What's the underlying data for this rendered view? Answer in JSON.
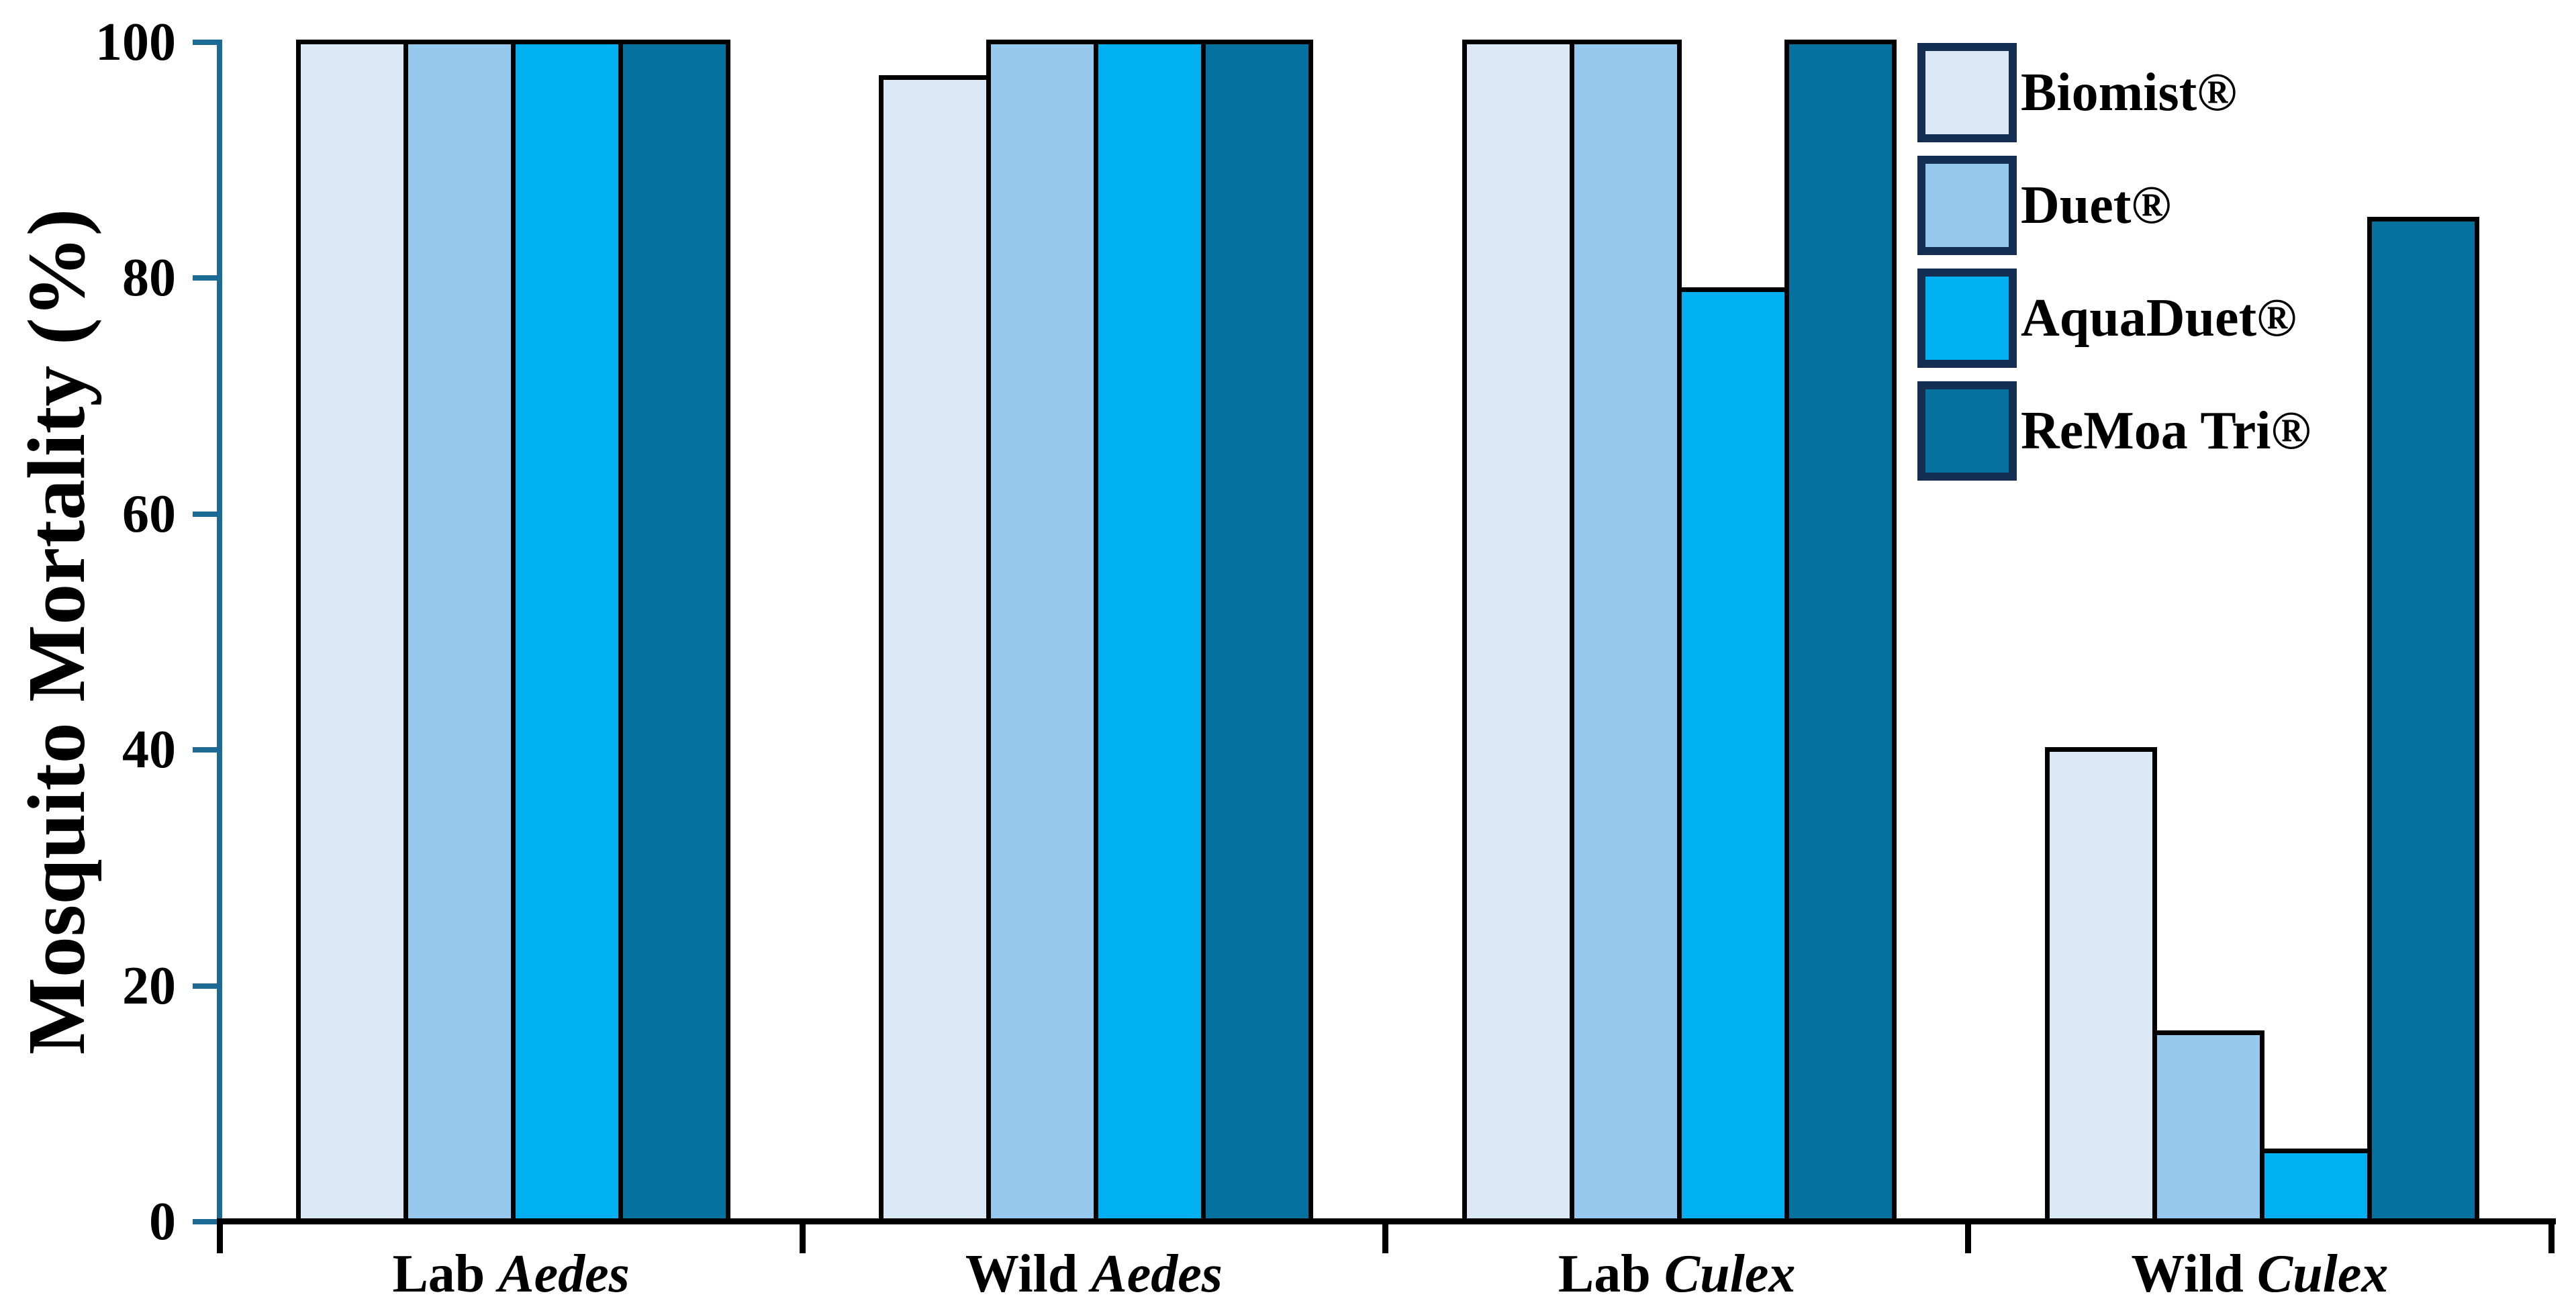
{
  "figure": {
    "background": "#ffffff",
    "y_axis": {
      "title": "Mosquito Mortality (%)",
      "tick_labels": [
        "0",
        "20",
        "40",
        "60",
        "80",
        "100"
      ],
      "axis_color": "#1b6b94",
      "text_color": "#000000"
    },
    "x_axis": {
      "axis_color": "#000000",
      "categories": [
        {
          "prefix": "Lab",
          "species": "Aedes"
        },
        {
          "prefix": "Wild",
          "species": "Aedes"
        },
        {
          "prefix": "Lab",
          "species": "Culex"
        },
        {
          "prefix": "Wild",
          "species": "Culex"
        }
      ]
    },
    "legend": {
      "position": "top-right",
      "swatch_border_color": "#152f52",
      "items": [
        "Biomist®",
        "Duet®",
        "AquaDuet®",
        "ReMoa Tri®"
      ]
    }
  },
  "chart_data": {
    "type": "bar",
    "title": "",
    "xlabel": "",
    "ylabel": "Mosquito Mortality (%)",
    "ylim": [
      0,
      100
    ],
    "yticks": [
      0,
      20,
      40,
      60,
      80,
      100
    ],
    "grid": false,
    "legend_position": "top-right",
    "bar_border_color": "#000000",
    "categories": [
      "Lab Aedes",
      "Wild Aedes",
      "Lab Culex",
      "Wild Culex"
    ],
    "series": [
      {
        "name": "Biomist®",
        "color": "#dbe8f5",
        "values": [
          100,
          97,
          100,
          40
        ]
      },
      {
        "name": "Duet®",
        "color": "#95c8ec",
        "values": [
          100,
          100,
          100,
          16
        ]
      },
      {
        "name": "AquaDuet®",
        "color": "#00b0f0",
        "values": [
          100,
          100,
          79,
          6
        ]
      },
      {
        "name": "ReMoa Tri®",
        "color": "#04719e",
        "values": [
          100,
          100,
          100,
          85
        ]
      }
    ]
  }
}
